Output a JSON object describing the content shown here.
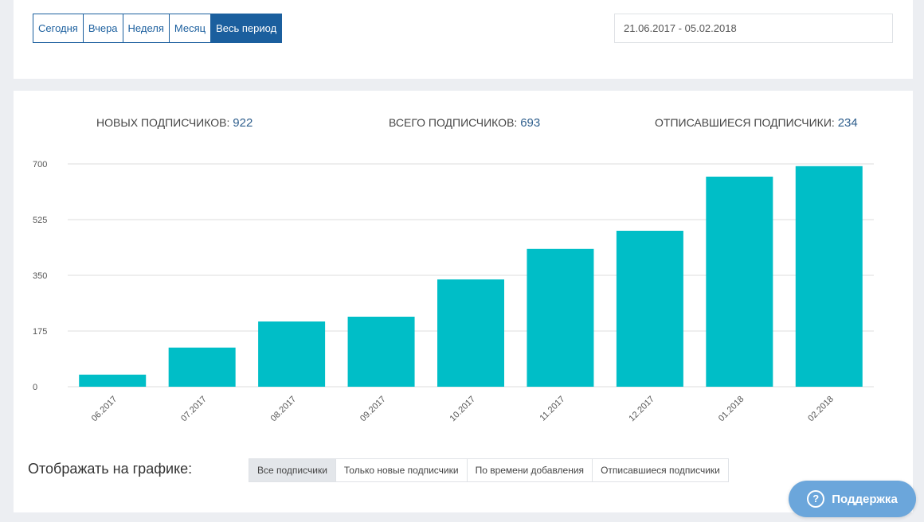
{
  "period": {
    "buttons": [
      "Сегодня",
      "Вчера",
      "Неделя",
      "Месяц",
      "Весь период"
    ],
    "active_index": 4
  },
  "date_range": "21.06.2017 - 05.02.2018",
  "stats": {
    "new_label": "НОВЫХ ПОДПИСЧИКОВ:",
    "new_value": "922",
    "total_label": "ВСЕГО ПОДПИСЧИКОВ:",
    "total_value": "693",
    "unsub_label": "ОТПИСАВШИЕСЯ ПОДПИСЧИКИ:",
    "unsub_value": "234"
  },
  "chart_data": {
    "type": "bar",
    "categories": [
      "06.2017",
      "07.2017",
      "08.2017",
      "09.2017",
      "10.2017",
      "11.2017",
      "12.2017",
      "01.2018",
      "02.2018"
    ],
    "values": [
      38,
      123,
      205,
      220,
      337,
      433,
      490,
      660,
      693
    ],
    "yticks": [
      0,
      175,
      350,
      525,
      700
    ],
    "ylim": [
      0,
      700
    ],
    "bar_color": "#00bec7",
    "grid": true
  },
  "display": {
    "label": "Отображать на графике:",
    "filters": [
      "Все подписчики",
      "Только новые подписчики",
      "По времени добавления",
      "Отписавшиеся подписчики"
    ],
    "active_index": 0
  },
  "support": {
    "label": "Поддержка",
    "icon": "question-circle-icon"
  },
  "colors": {
    "primary": "#1b5f9e",
    "bar": "#00bec7",
    "support": "#6ba6db"
  }
}
